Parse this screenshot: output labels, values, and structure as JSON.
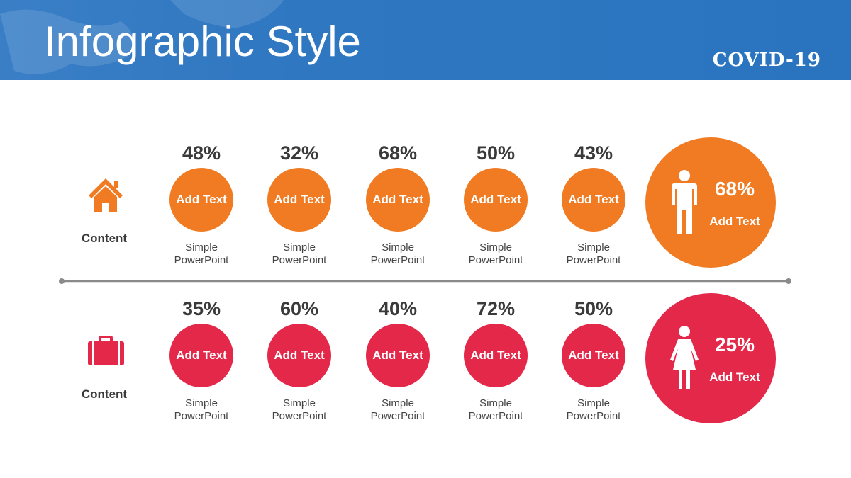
{
  "header": {
    "title": "Infographic Style",
    "badge": "COVID-19"
  },
  "rows": [
    {
      "label": "Content",
      "items": [
        {
          "percent": "48%",
          "circle_text": "Add Text",
          "caption": "Simple PowerPoint"
        },
        {
          "percent": "32%",
          "circle_text": "Add Text",
          "caption": "Simple PowerPoint"
        },
        {
          "percent": "68%",
          "circle_text": "Add Text",
          "caption": "Simple PowerPoint"
        },
        {
          "percent": "50%",
          "circle_text": "Add Text",
          "caption": "Simple PowerPoint"
        },
        {
          "percent": "43%",
          "circle_text": "Add Text",
          "caption": "Simple PowerPoint"
        }
      ],
      "summary": {
        "percent": "68%",
        "text": "Add Text"
      }
    },
    {
      "label": "Content",
      "items": [
        {
          "percent": "35%",
          "circle_text": "Add Text",
          "caption": "Simple PowerPoint"
        },
        {
          "percent": "60%",
          "circle_text": "Add Text",
          "caption": "Simple PowerPoint"
        },
        {
          "percent": "40%",
          "circle_text": "Add Text",
          "caption": "Simple PowerPoint"
        },
        {
          "percent": "72%",
          "circle_text": "Add Text",
          "caption": "Simple PowerPoint"
        },
        {
          "percent": "50%",
          "circle_text": "Add Text",
          "caption": "Simple PowerPoint"
        }
      ],
      "summary": {
        "percent": "25%",
        "text": "Add Text"
      }
    }
  ]
}
